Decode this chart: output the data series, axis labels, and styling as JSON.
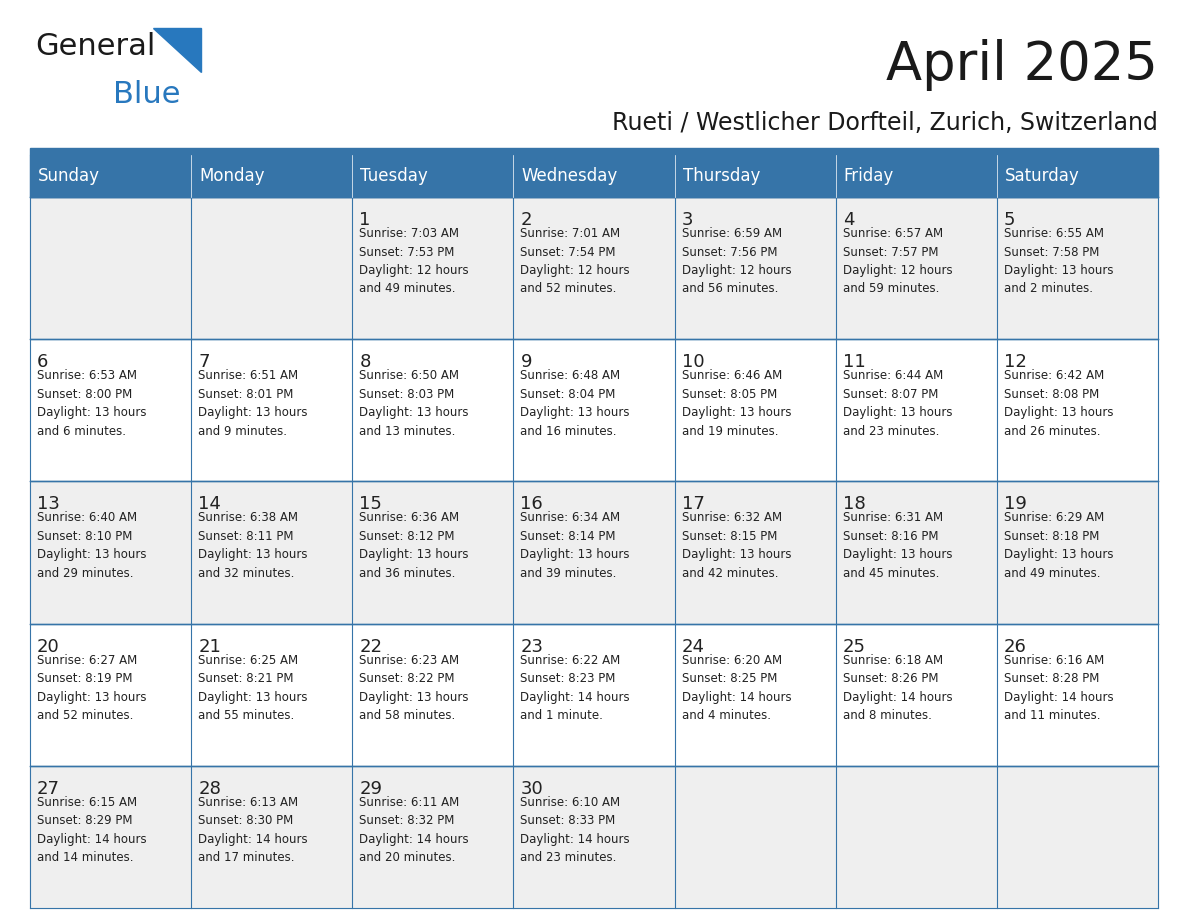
{
  "title": "April 2025",
  "subtitle": "Rueti / Westlicher Dorfteil, Zurich, Switzerland",
  "header_bg_color": "#3674A8",
  "header_text_color": "#FFFFFF",
  "cell_bg_color_odd": "#EFEFEF",
  "cell_bg_color_even": "#FFFFFF",
  "text_color": "#222222",
  "line_color": "#3674A8",
  "days_of_week": [
    "Sunday",
    "Monday",
    "Tuesday",
    "Wednesday",
    "Thursday",
    "Friday",
    "Saturday"
  ],
  "weeks": [
    [
      {
        "day": "",
        "info": ""
      },
      {
        "day": "",
        "info": ""
      },
      {
        "day": "1",
        "info": "Sunrise: 7:03 AM\nSunset: 7:53 PM\nDaylight: 12 hours\nand 49 minutes."
      },
      {
        "day": "2",
        "info": "Sunrise: 7:01 AM\nSunset: 7:54 PM\nDaylight: 12 hours\nand 52 minutes."
      },
      {
        "day": "3",
        "info": "Sunrise: 6:59 AM\nSunset: 7:56 PM\nDaylight: 12 hours\nand 56 minutes."
      },
      {
        "day": "4",
        "info": "Sunrise: 6:57 AM\nSunset: 7:57 PM\nDaylight: 12 hours\nand 59 minutes."
      },
      {
        "day": "5",
        "info": "Sunrise: 6:55 AM\nSunset: 7:58 PM\nDaylight: 13 hours\nand 2 minutes."
      }
    ],
    [
      {
        "day": "6",
        "info": "Sunrise: 6:53 AM\nSunset: 8:00 PM\nDaylight: 13 hours\nand 6 minutes."
      },
      {
        "day": "7",
        "info": "Sunrise: 6:51 AM\nSunset: 8:01 PM\nDaylight: 13 hours\nand 9 minutes."
      },
      {
        "day": "8",
        "info": "Sunrise: 6:50 AM\nSunset: 8:03 PM\nDaylight: 13 hours\nand 13 minutes."
      },
      {
        "day": "9",
        "info": "Sunrise: 6:48 AM\nSunset: 8:04 PM\nDaylight: 13 hours\nand 16 minutes."
      },
      {
        "day": "10",
        "info": "Sunrise: 6:46 AM\nSunset: 8:05 PM\nDaylight: 13 hours\nand 19 minutes."
      },
      {
        "day": "11",
        "info": "Sunrise: 6:44 AM\nSunset: 8:07 PM\nDaylight: 13 hours\nand 23 minutes."
      },
      {
        "day": "12",
        "info": "Sunrise: 6:42 AM\nSunset: 8:08 PM\nDaylight: 13 hours\nand 26 minutes."
      }
    ],
    [
      {
        "day": "13",
        "info": "Sunrise: 6:40 AM\nSunset: 8:10 PM\nDaylight: 13 hours\nand 29 minutes."
      },
      {
        "day": "14",
        "info": "Sunrise: 6:38 AM\nSunset: 8:11 PM\nDaylight: 13 hours\nand 32 minutes."
      },
      {
        "day": "15",
        "info": "Sunrise: 6:36 AM\nSunset: 8:12 PM\nDaylight: 13 hours\nand 36 minutes."
      },
      {
        "day": "16",
        "info": "Sunrise: 6:34 AM\nSunset: 8:14 PM\nDaylight: 13 hours\nand 39 minutes."
      },
      {
        "day": "17",
        "info": "Sunrise: 6:32 AM\nSunset: 8:15 PM\nDaylight: 13 hours\nand 42 minutes."
      },
      {
        "day": "18",
        "info": "Sunrise: 6:31 AM\nSunset: 8:16 PM\nDaylight: 13 hours\nand 45 minutes."
      },
      {
        "day": "19",
        "info": "Sunrise: 6:29 AM\nSunset: 8:18 PM\nDaylight: 13 hours\nand 49 minutes."
      }
    ],
    [
      {
        "day": "20",
        "info": "Sunrise: 6:27 AM\nSunset: 8:19 PM\nDaylight: 13 hours\nand 52 minutes."
      },
      {
        "day": "21",
        "info": "Sunrise: 6:25 AM\nSunset: 8:21 PM\nDaylight: 13 hours\nand 55 minutes."
      },
      {
        "day": "22",
        "info": "Sunrise: 6:23 AM\nSunset: 8:22 PM\nDaylight: 13 hours\nand 58 minutes."
      },
      {
        "day": "23",
        "info": "Sunrise: 6:22 AM\nSunset: 8:23 PM\nDaylight: 14 hours\nand 1 minute."
      },
      {
        "day": "24",
        "info": "Sunrise: 6:20 AM\nSunset: 8:25 PM\nDaylight: 14 hours\nand 4 minutes."
      },
      {
        "day": "25",
        "info": "Sunrise: 6:18 AM\nSunset: 8:26 PM\nDaylight: 14 hours\nand 8 minutes."
      },
      {
        "day": "26",
        "info": "Sunrise: 6:16 AM\nSunset: 8:28 PM\nDaylight: 14 hours\nand 11 minutes."
      }
    ],
    [
      {
        "day": "27",
        "info": "Sunrise: 6:15 AM\nSunset: 8:29 PM\nDaylight: 14 hours\nand 14 minutes."
      },
      {
        "day": "28",
        "info": "Sunrise: 6:13 AM\nSunset: 8:30 PM\nDaylight: 14 hours\nand 17 minutes."
      },
      {
        "day": "29",
        "info": "Sunrise: 6:11 AM\nSunset: 8:32 PM\nDaylight: 14 hours\nand 20 minutes."
      },
      {
        "day": "30",
        "info": "Sunrise: 6:10 AM\nSunset: 8:33 PM\nDaylight: 14 hours\nand 23 minutes."
      },
      {
        "day": "",
        "info": ""
      },
      {
        "day": "",
        "info": ""
      },
      {
        "day": "",
        "info": ""
      }
    ]
  ],
  "logo_text1": "General",
  "logo_text2": "Blue",
  "logo_color1": "#1a1a1a",
  "logo_color2": "#2878BE",
  "logo_triangle_color": "#2878BE",
  "title_fontsize": 38,
  "subtitle_fontsize": 17,
  "dow_fontsize": 12,
  "day_num_fontsize": 13,
  "info_fontsize": 8.5
}
